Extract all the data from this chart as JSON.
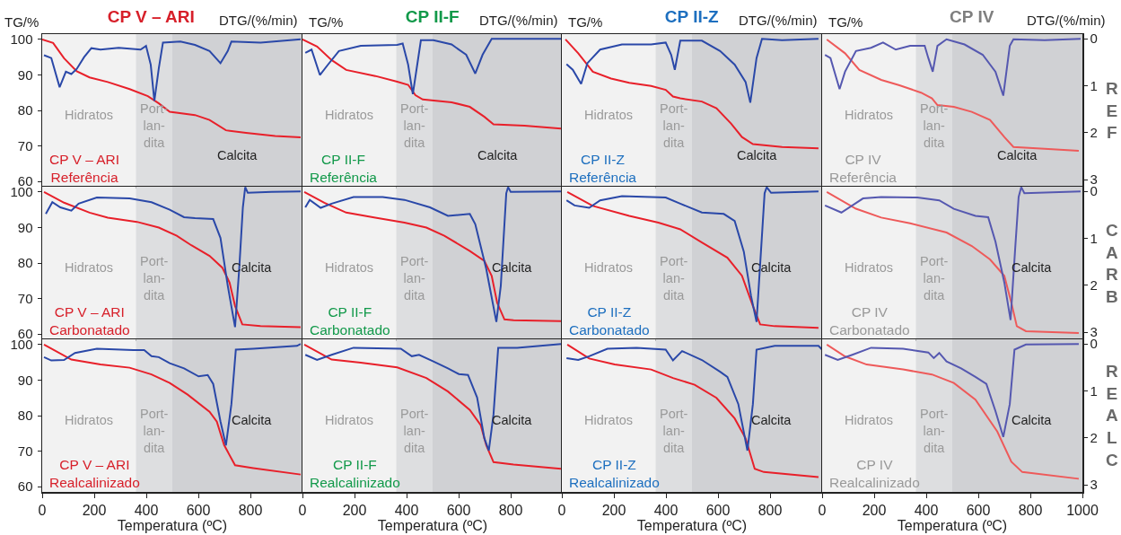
{
  "chart_data": [
    {
      "type": "line",
      "title": "CP V – ARI",
      "ylabel": "TG/%",
      "xlim": [
        0,
        1000
      ],
      "ylim": [
        58.5,
        101.5
      ],
      "yticks": [
        60,
        70,
        80,
        90,
        100
      ],
      "y2lim": [
        3.15,
        -0.1
      ],
      "tick_labels": "y",
      "bands": [
        {
          "axis": "x",
          "from": 0,
          "to": 360,
          "label": "Hidratos",
          "color": "#f2f2f2"
        },
        {
          "axis": "x",
          "from": 360,
          "to": 500,
          "label": "Port-\nlan-\ndita",
          "color": "#dddee0"
        },
        {
          "axis": "x",
          "from": 500,
          "to": 1000,
          "label": "Calcita",
          "color": "#d0d1d4"
        }
      ],
      "annotations": [
        "CP V – ARI\nReferência",
        "DTG/(%/min)"
      ],
      "series": [
        {
          "color": "#e8202a",
          "x": [
            0,
            42,
            84,
            133,
            182,
            252,
            336,
            406,
            448,
            490,
            587,
            643,
            706,
            783,
            895,
            993
          ],
          "values": [
            100,
            99,
            94.7,
            91,
            89.3,
            88,
            86,
            84,
            82,
            79.6,
            78.7,
            77.3,
            74.4,
            73.7,
            72.8,
            72.4
          ]
        },
        {
          "color": "#2a48a8",
          "axis": "y2",
          "x": [
            7,
            35,
            67,
            91,
            112,
            133,
            161,
            189,
            224,
            294,
            378,
            399,
            417,
            431,
            448,
            464,
            531,
            587,
            643,
            685,
            713,
            727,
            839,
            993
          ],
          "values": [
            0.35,
            0.41,
            1.03,
            0.7,
            0.75,
            0.64,
            0.39,
            0.2,
            0.23,
            0.19,
            0.23,
            0.15,
            0.55,
            1.32,
            0.63,
            0.08,
            0.06,
            0.13,
            0.26,
            0.52,
            0.26,
            0.06,
            0.08,
            0.01
          ]
        }
      ]
    },
    {
      "type": "line",
      "title": "CP II-F",
      "ylabel": "TG/%",
      "xlim": [
        0,
        1000
      ],
      "ylim": [
        58.5,
        101.5
      ],
      "y2lim": [
        3.15,
        -0.1
      ],
      "tick_labels": false,
      "bands": [
        {
          "axis": "x",
          "from": 0,
          "to": 360,
          "label": "Hidratos",
          "color": "#f2f2f2"
        },
        {
          "axis": "x",
          "from": 360,
          "to": 500,
          "label": "Port-\nlan-\ndita",
          "color": "#dddee0"
        },
        {
          "axis": "x",
          "from": 500,
          "to": 1000,
          "label": "Calcita",
          "color": "#d0d1d4"
        }
      ],
      "annotations": [
        "CP II-F\nReferência",
        "DTG/(%/min)"
      ],
      "series": [
        {
          "color": "#e8202a",
          "x": [
            0,
            56,
            112,
            168,
            280,
            364,
            406,
            434,
            462,
            573,
            643,
            699,
            734,
            853,
            993
          ],
          "values": [
            100,
            98,
            94.2,
            91.4,
            89.7,
            88.1,
            87.2,
            84.3,
            83.1,
            82.3,
            81,
            78.2,
            76.1,
            75.7,
            74.9
          ]
        },
        {
          "color": "#2a48a8",
          "axis": "y2",
          "x": [
            11,
            35,
            67,
            98,
            140,
            224,
            364,
            385,
            406,
            424,
            441,
            455,
            503,
            573,
            629,
            664,
            692,
            727,
            783,
            993
          ],
          "values": [
            0.3,
            0.23,
            0.77,
            0.55,
            0.26,
            0.15,
            0.13,
            0.1,
            0.55,
            1.18,
            0.55,
            0.03,
            0.03,
            0.12,
            0.34,
            0.74,
            0.34,
            0,
            0,
            0
          ]
        }
      ]
    },
    {
      "type": "line",
      "title": "CP II-Z",
      "y2label": "DTG/(%/min)",
      "xlim": [
        0,
        1000
      ],
      "ylim": [
        58.5,
        101.5
      ],
      "y2lim": [
        3.15,
        -0.1
      ],
      "tick_labels": false,
      "bands": [
        {
          "axis": "x",
          "from": 0,
          "to": 360,
          "label": "Hidratos",
          "color": "#f2f2f2"
        },
        {
          "axis": "x",
          "from": 360,
          "to": 500,
          "label": "Port-\nlan-\ndita",
          "color": "#dddee0"
        },
        {
          "axis": "x",
          "from": 500,
          "to": 1000,
          "label": "Calcita",
          "color": "#d0d1d4"
        }
      ],
      "annotations": [
        "CP II-Z\nReferência",
        "TG/%"
      ],
      "series": [
        {
          "color": "#e8202a",
          "x": [
            14,
            63,
            119,
            189,
            259,
            343,
            399,
            427,
            455,
            538,
            594,
            650,
            692,
            734,
            846,
            986
          ],
          "values": [
            100,
            96.1,
            90.9,
            89,
            87.8,
            86.9,
            85.8,
            83.9,
            83.4,
            82.5,
            80.6,
            76.3,
            72.5,
            70.5,
            69.7,
            69.3
          ]
        },
        {
          "color": "#2a48a8",
          "axis": "y2",
          "x": [
            18,
            42,
            74,
            98,
            147,
            231,
            343,
            399,
            420,
            434,
            455,
            538,
            608,
            664,
            706,
            724,
            748,
            769,
            846,
            986
          ],
          "values": [
            0.54,
            0.66,
            0.96,
            0.52,
            0.23,
            0.12,
            0.12,
            0.08,
            0.34,
            0.66,
            0.04,
            0.04,
            0.26,
            0.55,
            0.92,
            1.36,
            0.41,
            0,
            0.03,
            0
          ]
        }
      ]
    },
    {
      "type": "line",
      "title": "CP IV",
      "y2label": "DTG/(%/min)",
      "xlim": [
        0,
        1000
      ],
      "ylim": [
        58.5,
        101.5
      ],
      "y2lim": [
        3.15,
        -0.1
      ],
      "y2ticks": [
        0,
        1,
        2,
        3
      ],
      "bands": [
        {
          "axis": "x",
          "from": 0,
          "to": 360,
          "label": "Hidratos",
          "color": "#f2f2f2"
        },
        {
          "axis": "x",
          "from": 360,
          "to": 500,
          "label": "Port-\nlan-\ndita",
          "color": "#dddee0"
        },
        {
          "axis": "x",
          "from": 500,
          "to": 1000,
          "label": "Calcita",
          "color": "#d0d1d4"
        }
      ],
      "annotations": [
        "CP IV\nReferência",
        "REF",
        "TG/%"
      ],
      "series": [
        {
          "color": "#ee5a5a",
          "x": [
            18,
            88,
            143,
            227,
            297,
            380,
            422,
            443,
            506,
            575,
            645,
            700,
            735,
            855,
            986
          ],
          "values": [
            100,
            96.1,
            91.4,
            88.6,
            87.1,
            85,
            83.4,
            81.5,
            81,
            79.6,
            77.3,
            72.5,
            69.7,
            69.2,
            68.6
          ]
        },
        {
          "color": "#5558b0",
          "axis": "y2",
          "x": [
            11,
            32,
            67,
            88,
            130,
            188,
            234,
            283,
            338,
            394,
            408,
            425,
            443,
            478,
            547,
            617,
            666,
            696,
            721,
            735,
            855,
            993
          ],
          "values": [
            0.34,
            0.41,
            1.07,
            0.7,
            0.26,
            0.19,
            0.08,
            0.23,
            0.15,
            0.15,
            0.41,
            0.7,
            0.15,
            0.01,
            0.12,
            0.34,
            0.7,
            1.21,
            0.15,
            0.01,
            0.03,
            0
          ]
        }
      ]
    },
    {
      "type": "line",
      "xlim": [
        0,
        1000
      ],
      "ylim": [
        58.5,
        101.5
      ],
      "yticks": [
        60,
        70,
        80,
        90,
        100
      ],
      "y2lim": [
        3.15,
        -0.1
      ],
      "tick_labels": "y",
      "bands": [
        {
          "axis": "x",
          "from": 0,
          "to": 360,
          "label": "Hidratos",
          "color": "#f2f2f2"
        },
        {
          "axis": "x",
          "from": 360,
          "to": 500,
          "label": "Port-\nlan-\ndita",
          "color": "#dddee0"
        },
        {
          "axis": "x",
          "from": 500,
          "to": 1000,
          "label": "Calcita",
          "color": "#d0d1d4"
        }
      ],
      "annotations": [
        "CP V – ARI\nCarbonatado"
      ],
      "series": [
        {
          "color": "#e8202a",
          "x": [
            7,
            84,
            182,
            252,
            364,
            448,
            517,
            573,
            643,
            692,
            720,
            741,
            769,
            839,
            993
          ],
          "values": [
            100,
            97,
            94.2,
            92.8,
            91.6,
            90,
            87.7,
            85,
            82,
            78.7,
            74.5,
            67.9,
            62.7,
            62.2,
            61.9
          ]
        },
        {
          "color": "#2a48a8",
          "axis": "y2",
          "x": [
            14,
            39,
            70,
            112,
            140,
            210,
            336,
            420,
            490,
            545,
            587,
            657,
            685,
            713,
            741,
            757,
            771,
            780,
            790,
            881,
            993
          ],
          "values": [
            0.48,
            0.23,
            0.34,
            0.41,
            0.26,
            0.13,
            0.15,
            0.23,
            0.39,
            0.55,
            0.57,
            0.59,
            0.99,
            2.01,
            2.89,
            1.65,
            0.34,
            -0.09,
            0.03,
            0.01,
            0
          ]
        }
      ]
    },
    {
      "type": "line",
      "xlim": [
        0,
        1000
      ],
      "ylim": [
        58.5,
        101.5
      ],
      "y2lim": [
        3.15,
        -0.1
      ],
      "tick_labels": false,
      "bands": [
        {
          "axis": "x",
          "from": 0,
          "to": 360,
          "label": "Hidratos",
          "color": "#f2f2f2"
        },
        {
          "axis": "x",
          "from": 360,
          "to": 500,
          "label": "Port-\nlan-\ndita",
          "color": "#dddee0"
        },
        {
          "axis": "x",
          "from": 500,
          "to": 1000,
          "label": "Calcita",
          "color": "#d0d1d4"
        }
      ],
      "annotations": [
        "CP II-F\nCarbonatado"
      ],
      "series": [
        {
          "color": "#e8202a",
          "x": [
            7,
            84,
            168,
            280,
            392,
            476,
            545,
            643,
            699,
            727,
            748,
            776,
            811,
            993
          ],
          "values": [
            100,
            97,
            94.2,
            92.8,
            91.4,
            90,
            87.7,
            83.4,
            80.6,
            76.4,
            68.8,
            64.1,
            63.9,
            63.6
          ]
        },
        {
          "color": "#2a48a8",
          "axis": "y2",
          "x": [
            11,
            28,
            70,
            112,
            196,
            308,
            392,
            490,
            559,
            643,
            664,
            706,
            745,
            762,
            783,
            790,
            800,
            993
          ],
          "values": [
            0.34,
            0.18,
            0.35,
            0.26,
            0.12,
            0.12,
            0.18,
            0.34,
            0.52,
            0.48,
            0.7,
            1.65,
            2.78,
            2.01,
            0.04,
            -0.09,
            0.01,
            0
          ]
        }
      ]
    },
    {
      "type": "line",
      "xlim": [
        0,
        1000
      ],
      "ylim": [
        58.5,
        101.5
      ],
      "y2lim": [
        3.15,
        -0.1
      ],
      "tick_labels": false,
      "bands": [
        {
          "axis": "x",
          "from": 0,
          "to": 360,
          "label": "Hidratos",
          "color": "#f2f2f2"
        },
        {
          "axis": "x",
          "from": 360,
          "to": 500,
          "label": "Port-\nlan-\ndita",
          "color": "#dddee0"
        },
        {
          "axis": "x",
          "from": 500,
          "to": 1000,
          "label": "Calcita",
          "color": "#d0d1d4"
        }
      ],
      "annotations": [
        "CP II-Z\nCarbonatado"
      ],
      "series": [
        {
          "color": "#e8202a",
          "x": [
            21,
            119,
            259,
            371,
            455,
            538,
            636,
            692,
            734,
            762,
            818,
            986
          ],
          "values": [
            100,
            96.1,
            93.3,
            91.4,
            89.5,
            85.8,
            81.5,
            76.4,
            67.9,
            62.7,
            62.2,
            61.7
          ]
        },
        {
          "color": "#2a48a8",
          "axis": "y2",
          "x": [
            18,
            49,
            105,
            147,
            231,
            399,
            455,
            538,
            622,
            664,
            699,
            727,
            748,
            765,
            779,
            787,
            804,
            986
          ],
          "values": [
            0.19,
            0.3,
            0.35,
            0.19,
            0.1,
            0.13,
            0.26,
            0.45,
            0.48,
            0.63,
            1.28,
            2.23,
            2.78,
            1.28,
            0.04,
            -0.09,
            0.03,
            0
          ]
        }
      ]
    },
    {
      "type": "line",
      "xlim": [
        0,
        1000
      ],
      "ylim": [
        58.5,
        101.5
      ],
      "y2lim": [
        3.15,
        -0.1
      ],
      "y2ticks": [
        0,
        1,
        2,
        3
      ],
      "bands": [
        {
          "axis": "x",
          "from": 0,
          "to": 360,
          "label": "Hidratos",
          "color": "#f2f2f2"
        },
        {
          "axis": "x",
          "from": 360,
          "to": 500,
          "label": "Port-\nlan-\ndita",
          "color": "#dddee0"
        },
        {
          "axis": "x",
          "from": 500,
          "to": 1000,
          "label": "Calcita",
          "color": "#d0d1d4"
        }
      ],
      "annotations": [
        "CP IV\nCarbonatado",
        "CARB"
      ],
      "series": [
        {
          "color": "#ee5a5a",
          "x": [
            18,
            130,
            227,
            338,
            478,
            575,
            645,
            700,
            727,
            748,
            783,
            986
          ],
          "values": [
            100,
            95.3,
            92.8,
            91.2,
            88.6,
            84.8,
            81,
            76.4,
            68.8,
            62.2,
            60.8,
            60.3
          ]
        },
        {
          "color": "#5558b0",
          "axis": "y2",
          "x": [
            11,
            74,
            116,
            157,
            227,
            366,
            450,
            506,
            589,
            638,
            666,
            700,
            724,
            741,
            755,
            765,
            777,
            993
          ],
          "values": [
            0.3,
            0.45,
            0.3,
            0.15,
            0.12,
            0.13,
            0.19,
            0.37,
            0.52,
            0.55,
            1.07,
            1.94,
            2.74,
            1.28,
            0.12,
            -0.09,
            0.04,
            0
          ]
        }
      ]
    },
    {
      "type": "line",
      "xlabel": "Temperatura (ºC)",
      "xlim": [
        0,
        1000
      ],
      "xticks": [
        0,
        200,
        400,
        600,
        800
      ],
      "ylim": [
        58.5,
        101.5
      ],
      "yticks": [
        60,
        70,
        80,
        90,
        100
      ],
      "y2lim": [
        3.15,
        -0.1
      ],
      "bands": [
        {
          "axis": "x",
          "from": 0,
          "to": 360,
          "label": "Hidratos",
          "color": "#f2f2f2"
        },
        {
          "axis": "x",
          "from": 360,
          "to": 500,
          "label": "Port-\nlan-\ndita",
          "color": "#dddee0"
        },
        {
          "axis": "x",
          "from": 500,
          "to": 1000,
          "label": "Calcita",
          "color": "#d0d1d4"
        }
      ],
      "annotations": [
        "CP V – ARI\nRealcalinizado"
      ],
      "series": [
        {
          "color": "#e8202a",
          "x": [
            7,
            112,
            224,
            336,
            420,
            490,
            559,
            643,
            671,
            699,
            741,
            811,
            993
          ],
          "values": [
            100,
            95.8,
            94.4,
            93.5,
            91.6,
            89.2,
            85.9,
            81.1,
            78.3,
            71.7,
            66,
            65.2,
            63.4
          ]
        },
        {
          "color": "#2a48a8",
          "axis": "y2",
          "x": [
            7,
            35,
            84,
            126,
            210,
            350,
            392,
            420,
            448,
            490,
            545,
            601,
            636,
            657,
            685,
            706,
            727,
            744,
            811,
            979,
            993
          ],
          "values": [
            0.28,
            0.35,
            0.34,
            0.19,
            0.1,
            0.13,
            0.13,
            0.26,
            0.28,
            0.41,
            0.52,
            0.69,
            0.66,
            0.85,
            1.65,
            2.16,
            1.28,
            0.12,
            0.1,
            0.04,
            0
          ]
        }
      ]
    },
    {
      "type": "line",
      "xlabel": "Temperatura (ºC)",
      "xlim": [
        0,
        1000
      ],
      "xticks": [
        0,
        200,
        400,
        600,
        800
      ],
      "ylim": [
        58.5,
        101.5
      ],
      "y2lim": [
        3.15,
        -0.1
      ],
      "tick_labels": "x",
      "bands": [
        {
          "axis": "x",
          "from": 0,
          "to": 360,
          "label": "Hidratos",
          "color": "#f2f2f2"
        },
        {
          "axis": "x",
          "from": 360,
          "to": 500,
          "label": "Port-\nlan-\ndita",
          "color": "#dddee0"
        },
        {
          "axis": "x",
          "from": 500,
          "to": 1000,
          "label": "Calcita",
          "color": "#d0d1d4"
        }
      ],
      "annotations": [
        "CP II-F\nRealcalinizado"
      ],
      "series": [
        {
          "color": "#e8202a",
          "x": [
            7,
            112,
            224,
            364,
            476,
            559,
            643,
            685,
            706,
            734,
            811,
            993
          ],
          "values": [
            100,
            95.8,
            94.9,
            93.6,
            90.6,
            86.8,
            81.6,
            77.3,
            71.7,
            66.9,
            66.2,
            65
          ]
        },
        {
          "color": "#2a48a8",
          "axis": "y2",
          "x": [
            11,
            56,
            112,
            196,
            378,
            420,
            448,
            503,
            559,
            601,
            636,
            671,
            699,
            716,
            734,
            752,
            825,
            993
          ],
          "values": [
            0.23,
            0.34,
            0.23,
            0.08,
            0.1,
            0.26,
            0.23,
            0.37,
            0.52,
            0.64,
            0.66,
            1.14,
            2.01,
            2.27,
            1.5,
            0.08,
            0.08,
            0
          ]
        }
      ]
    },
    {
      "type": "line",
      "xlabel": "Temperatura (ºC)",
      "xlim": [
        0,
        1000
      ],
      "xticks": [
        0,
        200,
        400,
        600,
        800
      ],
      "ylim": [
        58.5,
        101.5
      ],
      "y2lim": [
        3.15,
        -0.1
      ],
      "tick_labels": "x",
      "bands": [
        {
          "axis": "x",
          "from": 0,
          "to": 360,
          "label": "Hidratos",
          "color": "#f2f2f2"
        },
        {
          "axis": "x",
          "from": 360,
          "to": 500,
          "label": "Port-\nlan-\ndita",
          "color": "#dddee0"
        },
        {
          "axis": "x",
          "from": 500,
          "to": 1000,
          "label": "Calcita",
          "color": "#d0d1d4"
        }
      ],
      "annotations": [
        "CP II-Z\nRealcalinizado"
      ],
      "series": [
        {
          "color": "#e8202a",
          "x": [
            21,
            105,
            203,
            343,
            427,
            510,
            594,
            664,
            706,
            741,
            776,
            986
          ],
          "values": [
            100,
            96.1,
            94.4,
            93,
            90.6,
            88.7,
            85,
            79.2,
            73.6,
            65,
            64.1,
            62.7
          ]
        },
        {
          "color": "#2a48a8",
          "axis": "y2",
          "x": [
            18,
            63,
            105,
            175,
            287,
            399,
            427,
            462,
            538,
            608,
            636,
            678,
            713,
            734,
            748,
            818,
            986,
            1000
          ],
          "values": [
            0.3,
            0.34,
            0.26,
            0.1,
            0.08,
            0.12,
            0.35,
            0.15,
            0.34,
            0.59,
            0.7,
            1.28,
            2.27,
            1.28,
            0.12,
            0.04,
            0.04,
            0.12
          ]
        }
      ]
    },
    {
      "type": "line",
      "xlabel": "Temperatura (ºC)",
      "xlim": [
        0,
        1000
      ],
      "xticks": [
        0,
        200,
        400,
        600,
        800,
        1000
      ],
      "ylim": [
        58.5,
        101.5
      ],
      "y2lim": [
        3.15,
        -0.1
      ],
      "y2ticks": [
        0,
        1,
        2,
        3
      ],
      "bands": [
        {
          "axis": "x",
          "from": 0,
          "to": 360,
          "label": "Hidratos",
          "color": "#f2f2f2"
        },
        {
          "axis": "x",
          "from": 360,
          "to": 500,
          "label": "Port-\nlan-\ndita",
          "color": "#dddee0"
        },
        {
          "axis": "x",
          "from": 500,
          "to": 1000,
          "label": "Calcita",
          "color": "#d0d1d4"
        }
      ],
      "annotations": [
        "CP IV\nRealcalinizado",
        "REALC"
      ],
      "series": [
        {
          "color": "#ee5a5a",
          "x": [
            18,
            88,
            171,
            311,
            422,
            506,
            589,
            673,
            727,
            769,
            986
          ],
          "values": [
            100,
            96.7,
            94.4,
            93,
            91.6,
            89.2,
            84.5,
            75.5,
            67,
            64.1,
            62.2
          ]
        },
        {
          "color": "#5558b0",
          "axis": "y2",
          "x": [
            11,
            60,
            116,
            188,
            311,
            408,
            429,
            450,
            478,
            534,
            589,
            631,
            666,
            696,
            721,
            739,
            783,
            986
          ],
          "values": [
            0.23,
            0.34,
            0.23,
            0.08,
            0.1,
            0.18,
            0.3,
            0.19,
            0.37,
            0.52,
            0.7,
            0.85,
            1.43,
            1.98,
            1.28,
            0.12,
            0.01,
            0
          ]
        }
      ]
    }
  ]
}
